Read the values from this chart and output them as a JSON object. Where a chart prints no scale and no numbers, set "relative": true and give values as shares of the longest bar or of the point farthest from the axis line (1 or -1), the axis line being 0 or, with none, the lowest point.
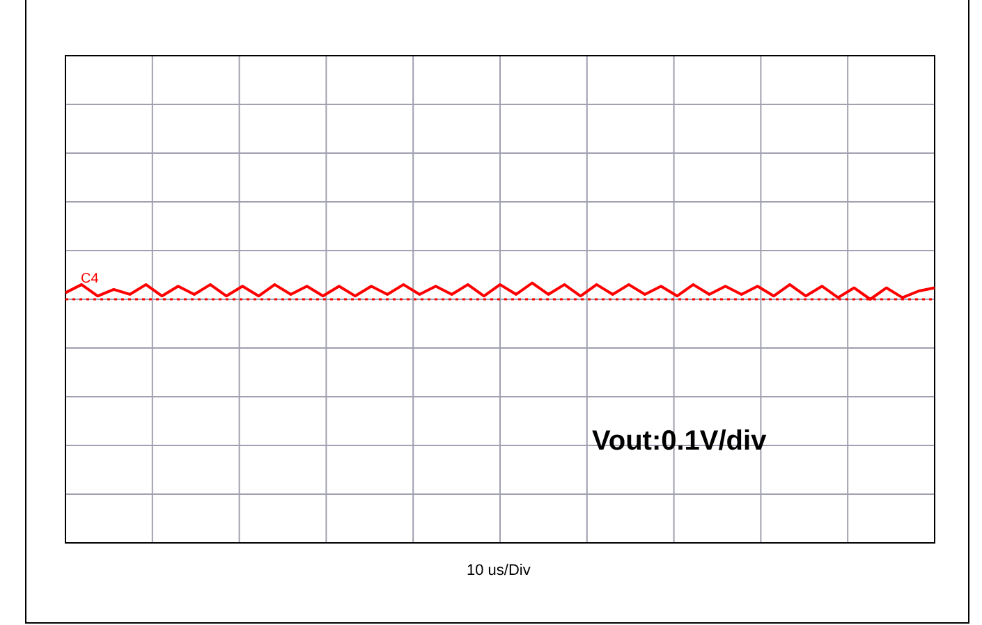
{
  "chart_data": {
    "type": "line",
    "relative": true,
    "grid": true,
    "legend": false,
    "marker": "none",
    "line_style": "solid",
    "annotations": [
      "C4",
      "Vout:0.1V/div",
      "10 us/Div"
    ],
    "ref_lines": [
      {
        "axis": "y",
        "value": 0,
        "color": "#ff0000",
        "line_style": "dotted"
      }
    ],
    "categories": [
      null,
      null,
      null,
      null,
      null,
      null,
      null,
      null,
      null,
      null,
      null,
      null,
      null,
      null,
      null,
      null,
      null,
      null,
      null,
      null,
      null,
      null,
      null,
      null,
      null,
      null,
      null,
      null,
      null,
      null,
      null,
      null,
      null,
      null,
      null,
      null,
      null,
      null,
      null,
      null,
      null,
      null,
      null,
      null,
      null,
      null,
      null,
      null,
      null,
      null,
      null,
      null,
      null,
      null,
      null
    ],
    "series": [
      {
        "color": "#ff0000",
        "values": [
          0.4,
          0.9,
          0.2,
          0.6,
          0.3,
          0.9,
          0.2,
          0.8,
          0.3,
          0.9,
          0.2,
          0.8,
          0.2,
          0.9,
          0.3,
          0.8,
          0.2,
          0.8,
          0.2,
          0.8,
          0.3,
          0.9,
          0.3,
          0.8,
          0.3,
          0.9,
          0.2,
          0.9,
          0.3,
          1,
          0.3,
          0.9,
          0.2,
          0.9,
          0.3,
          0.9,
          0.3,
          0.8,
          0.2,
          0.9,
          0.3,
          0.8,
          0.3,
          0.8,
          0.2,
          0.9,
          0.2,
          0.8,
          0.1,
          0.7,
          0,
          0.7,
          0.1,
          0.5,
          0.7
        ]
      }
    ]
  }
}
